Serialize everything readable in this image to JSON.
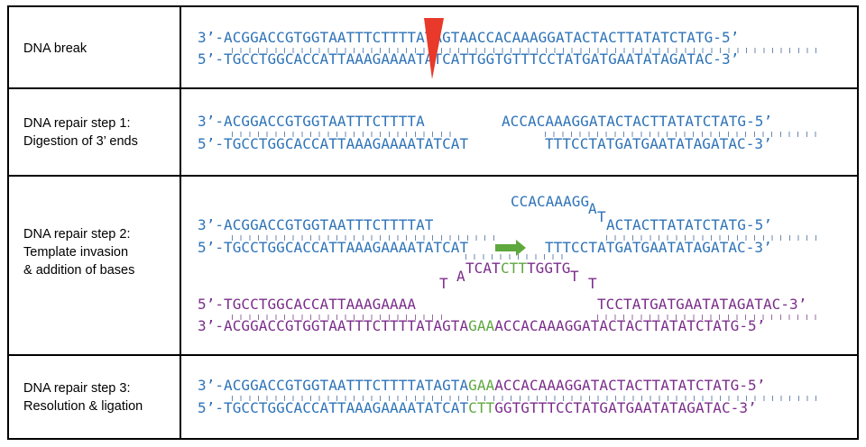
{
  "rows": [
    {
      "label": [
        "DNA break"
      ],
      "top_strand": "3’-ACGGACCGTGGTAATTTCTTTTATAGTAACCACAAAGGATACTACTTATATCTATG-5’",
      "bottom_strand": "5’-TGCCTGGCACCATTAAAGAAAATATCATTGGTGTTTCCTATGATGAATATAGATAC-3’",
      "break_marker_color": "#e8392b"
    },
    {
      "label": [
        "DNA repair step 1:",
        "Digestion of 3’ ends"
      ],
      "top_left": "3’-ACGGACCGTGGTAATTTCTTTTA",
      "top_right": "ACCACAAAGGATACTACTTATATCTATG-5’",
      "bottom_left": "5’-TGCCTGGCACCATTAAAGAAAATATCAT",
      "bottom_right": "TTTCCTATGATGAATATAGATAC-3’"
    },
    {
      "label": [
        "DNA repair step 2:",
        "Template invasion",
        "& addition of bases"
      ],
      "loop_top": "CCACAAAGG",
      "loop_a1": "A",
      "loop_t1": "T",
      "top_left": "3’-ACGGACCGTGGTAATTTCTTTTAT",
      "top_right": "ACTACTTATATCTATG-5’",
      "bottom_left": "5’-TGCCTGGCACCATTAAAGAAAATATCAT",
      "bottom_right": "TTTCCTATGATGAATATAGATAC-3’",
      "invading_t": "T",
      "invading_a": "A",
      "invading_tcat": "TCAT",
      "invading_new": "CTT",
      "invading_rest": "TGGTG",
      "invading_t2": "T",
      "invading_t3": "T",
      "template_top_left": "5’-TGCCTGGCACCATTAAAGAAAA",
      "template_top_right": "TCCTATGATGAATATAGATAC-3’",
      "template_bottom_a": "3’-ACGGACCGTGGTAATTTCTTTTATAGTA",
      "template_bottom_new": "GAA",
      "template_bottom_b": "ACCACAAAGGATACTACTTATATCTATG-5’"
    },
    {
      "label": [
        "DNA repair step 3:",
        "Resolution & ligation"
      ],
      "top_a": "3’-ACGGACCGTGGTAATTTCTTTTATAGTA",
      "top_new": "GAA",
      "top_b": "ACCACAAAGGATACTACTTATATCTATG-5’",
      "bottom_a": "5’-TGCCTGGCACCATTAAAGAAAATATCAT",
      "bottom_new": "CTT",
      "bottom_b": "GGTGTTTCCTATGATGAATATAGATAC-3’"
    }
  ],
  "colors": {
    "existing_dna": "#2e73b8",
    "template_strand": "#7b2d8b",
    "new_bases": "#5ea83e",
    "break_marker": "#e8392b",
    "extension_arrow": "#5ea83e"
  }
}
